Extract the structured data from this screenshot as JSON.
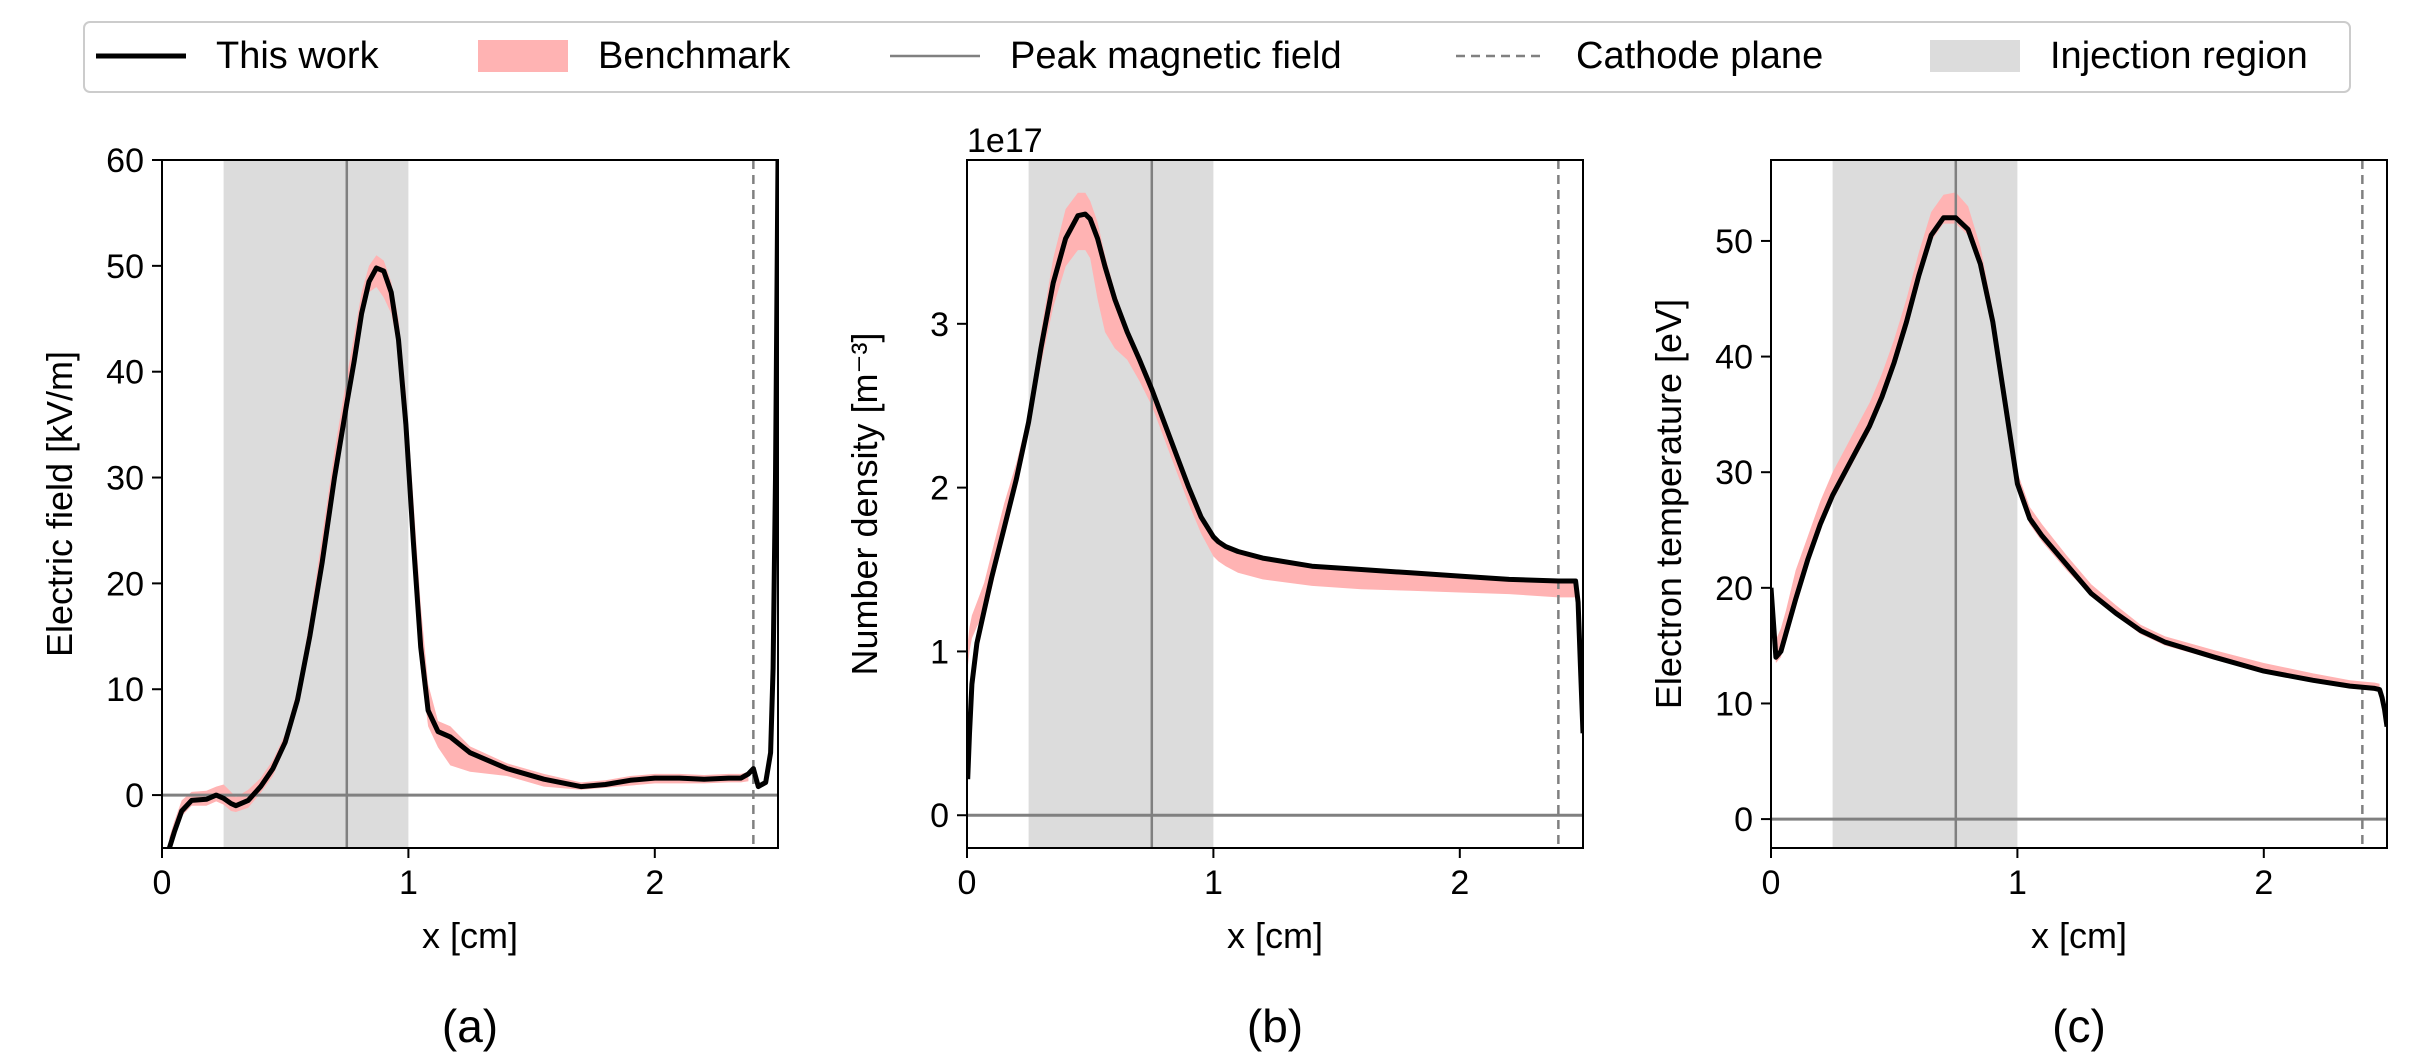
{
  "legend": {
    "placement": "top-center",
    "entries": [
      {
        "label": "This work",
        "kind": "line",
        "color": "#000000",
        "style": "solid"
      },
      {
        "label": "Benchmark",
        "kind": "band",
        "color": "#ffb3b3"
      },
      {
        "label": "Peak magnetic field",
        "kind": "line",
        "color": "#808080",
        "style": "solid"
      },
      {
        "label": "Cathode plane",
        "kind": "line",
        "color": "#808080",
        "style": "dashed"
      },
      {
        "label": "Injection region",
        "kind": "band",
        "color": "#dcdcdc"
      }
    ]
  },
  "annotations": {
    "peak_magnetic_field_x": 0.75,
    "cathode_plane_x": 2.4,
    "injection_region": [
      0.25,
      1.0
    ],
    "zero_line_color": "#808080"
  },
  "chart_data": [
    {
      "type": "line",
      "panel_label": "(a)",
      "xlabel": "x [cm]",
      "ylabel": "Electric field [kV/m]",
      "xlim": [
        0,
        2.5
      ],
      "ylim": [
        -5,
        60
      ],
      "xticks": [
        0,
        1,
        2
      ],
      "yticks": [
        0,
        10,
        20,
        30,
        40,
        50,
        60
      ],
      "offset_text": "",
      "series": [
        {
          "name": "This work",
          "color": "#000000",
          "x": [
            0.03,
            0.05,
            0.08,
            0.12,
            0.18,
            0.22,
            0.25,
            0.28,
            0.3,
            0.35,
            0.4,
            0.45,
            0.5,
            0.55,
            0.6,
            0.65,
            0.7,
            0.75,
            0.78,
            0.81,
            0.84,
            0.87,
            0.9,
            0.93,
            0.96,
            0.99,
            1.02,
            1.05,
            1.08,
            1.12,
            1.17,
            1.25,
            1.4,
            1.55,
            1.7,
            1.8,
            1.9,
            2.0,
            2.1,
            2.2,
            2.3,
            2.35,
            2.38,
            2.4,
            2.42,
            2.45,
            2.47,
            2.48,
            2.49,
            2.5
          ],
          "y": [
            -5,
            -3.5,
            -1.5,
            -0.5,
            -0.4,
            0,
            -0.3,
            -0.8,
            -1.0,
            -0.5,
            0.8,
            2.5,
            5.0,
            9.0,
            15.0,
            22.0,
            30.0,
            37.0,
            41.0,
            45.5,
            48.5,
            49.8,
            49.5,
            47.5,
            43.0,
            35.0,
            24.0,
            14.0,
            8.0,
            6.0,
            5.5,
            4.0,
            2.5,
            1.5,
            0.8,
            1.0,
            1.4,
            1.6,
            1.6,
            1.5,
            1.6,
            1.6,
            2.0,
            2.5,
            0.8,
            1.2,
            4.0,
            12.0,
            30.0,
            60.0
          ]
        },
        {
          "name": "Benchmark",
          "color": "#ffb3b3",
          "x": [
            0.03,
            0.05,
            0.08,
            0.12,
            0.18,
            0.22,
            0.25,
            0.28,
            0.3,
            0.35,
            0.4,
            0.45,
            0.5,
            0.55,
            0.6,
            0.65,
            0.7,
            0.75,
            0.78,
            0.81,
            0.84,
            0.87,
            0.9,
            0.93,
            0.96,
            0.99,
            1.02,
            1.05,
            1.08,
            1.12,
            1.17,
            1.25,
            1.4,
            1.55,
            1.7,
            1.8,
            1.9,
            2.0,
            2.1,
            2.2,
            2.3,
            2.35,
            2.38
          ],
          "lower": [
            -5,
            -4,
            -2.0,
            -1.0,
            -1.0,
            -0.6,
            -0.9,
            -1.5,
            -1.6,
            -1.2,
            0.2,
            1.8,
            4.5,
            8.5,
            15.0,
            23.0,
            31.0,
            38.0,
            42.0,
            45.5,
            47.5,
            48.0,
            47.0,
            45.5,
            42.0,
            34.0,
            22.0,
            12.0,
            6.5,
            4.5,
            2.8,
            2.2,
            1.8,
            0.8,
            0.5,
            0.7,
            0.9,
            1.1,
            1.1,
            1.1,
            1.2,
            1.2,
            1.3
          ],
          "upper": [
            -4,
            -2.5,
            -0.5,
            0.3,
            0.4,
            0.8,
            1.0,
            0.3,
            -0.2,
            0.5,
            1.6,
            3.3,
            5.8,
            10.0,
            16.5,
            24.5,
            32.5,
            39.5,
            43.5,
            47.5,
            50.0,
            51.0,
            50.5,
            48.5,
            45.0,
            38.0,
            28.0,
            18.0,
            10.5,
            7.0,
            6.5,
            4.6,
            3.0,
            2.0,
            1.2,
            1.4,
            1.8,
            2.0,
            2.0,
            1.9,
            2.0,
            2.0,
            2.2
          ]
        }
      ]
    },
    {
      "type": "line",
      "panel_label": "(b)",
      "xlabel": "x [cm]",
      "ylabel": "Number density [m⁻³]",
      "xlim": [
        0,
        2.5
      ],
      "ylim": [
        -2e+16,
        4e+17
      ],
      "xticks": [
        0,
        1,
        2
      ],
      "yticks": [
        0,
        1e+17,
        2e+17,
        3e+17
      ],
      "tick_divisor": 1e+17,
      "offset_text": "1e17",
      "series": [
        {
          "name": "This work",
          "color": "#000000",
          "x": [
            0.003,
            0.01,
            0.02,
            0.04,
            0.07,
            0.1,
            0.15,
            0.2,
            0.25,
            0.3,
            0.35,
            0.4,
            0.45,
            0.48,
            0.5,
            0.53,
            0.56,
            0.6,
            0.65,
            0.7,
            0.75,
            0.8,
            0.85,
            0.9,
            0.95,
            1.0,
            1.02,
            1.05,
            1.1,
            1.2,
            1.4,
            1.6,
            1.8,
            2.0,
            2.2,
            2.4,
            2.47,
            2.48,
            2.49,
            2.5
          ],
          "y": [
            2.2e+16,
            5e+16,
            8e+16,
            1.05e+17,
            1.25e+17,
            1.45e+17,
            1.75e+17,
            2.05e+17,
            2.4e+17,
            2.85e+17,
            3.25e+17,
            3.52e+17,
            3.66e+17,
            3.67e+17,
            3.64e+17,
            3.52e+17,
            3.35e+17,
            3.15e+17,
            2.95e+17,
            2.78e+17,
            2.6e+17,
            2.4e+17,
            2.2e+17,
            2e+17,
            1.82e+17,
            1.7e+17,
            1.67e+17,
            1.64e+17,
            1.61e+17,
            1.57e+17,
            1.52e+17,
            1.5e+17,
            1.48e+17,
            1.46e+17,
            1.44e+17,
            1.43e+17,
            1.43e+17,
            1.3e+17,
            9e+16,
            5e+16
          ]
        },
        {
          "name": "Benchmark",
          "color": "#ffb3b3",
          "x": [
            0.003,
            0.01,
            0.02,
            0.04,
            0.07,
            0.1,
            0.15,
            0.2,
            0.25,
            0.3,
            0.35,
            0.4,
            0.45,
            0.48,
            0.5,
            0.53,
            0.56,
            0.6,
            0.65,
            0.7,
            0.75,
            0.8,
            0.85,
            0.9,
            0.95,
            1.0,
            1.02,
            1.05,
            1.1,
            1.2,
            1.4,
            1.6,
            1.8,
            2.0,
            2.2,
            2.4,
            2.47
          ],
          "lower": [
            9e+16,
            1e+17,
            1.08e+17,
            1.15e+17,
            1.25e+17,
            1.38e+17,
            1.7e+17,
            2e+17,
            2.38e+17,
            2.75e+17,
            3.1e+17,
            3.35e+17,
            3.45e+17,
            3.45e+17,
            3.4e+17,
            3.15e+17,
            2.95e+17,
            2.85e+17,
            2.78e+17,
            2.65e+17,
            2.5e+17,
            2.3e+17,
            2.1e+17,
            1.9e+17,
            1.72e+17,
            1.58e+17,
            1.55e+17,
            1.52e+17,
            1.48e+17,
            1.44e+17,
            1.4e+17,
            1.38e+17,
            1.37e+17,
            1.36e+17,
            1.35e+17,
            1.33e+17,
            1.33e+17
          ],
          "upper": [
            1.05e+17,
            1.15e+17,
            1.22e+17,
            1.3e+17,
            1.42e+17,
            1.6e+17,
            1.9e+17,
            2.15e+17,
            2.45e+17,
            2.95e+17,
            3.4e+17,
            3.7e+17,
            3.8e+17,
            3.8e+17,
            3.75e+17,
            3.62e+17,
            3.42e+17,
            3.2e+17,
            2.98e+17,
            2.8e+17,
            2.62e+17,
            2.42e+17,
            2.22e+17,
            2.02e+17,
            1.83e+17,
            1.7e+17,
            1.66e+17,
            1.63e+17,
            1.6e+17,
            1.56e+17,
            1.52e+17,
            1.5e+17,
            1.49e+17,
            1.47e+17,
            1.45e+17,
            1.44e+17,
            1.44e+17
          ]
        }
      ]
    },
    {
      "type": "line",
      "panel_label": "(c)",
      "xlabel": "x [cm]",
      "ylabel": "Electron temperature [eV]",
      "xlim": [
        0,
        2.5
      ],
      "ylim": [
        -2.5,
        57
      ],
      "xticks": [
        0,
        1,
        2
      ],
      "yticks": [
        0,
        10,
        20,
        30,
        40,
        50
      ],
      "offset_text": "",
      "series": [
        {
          "name": "This work",
          "color": "#000000",
          "x": [
            0.0,
            0.02,
            0.04,
            0.06,
            0.1,
            0.15,
            0.2,
            0.25,
            0.3,
            0.35,
            0.4,
            0.45,
            0.5,
            0.55,
            0.6,
            0.65,
            0.7,
            0.75,
            0.8,
            0.85,
            0.9,
            0.95,
            1.0,
            1.05,
            1.1,
            1.2,
            1.3,
            1.4,
            1.5,
            1.6,
            1.8,
            2.0,
            2.2,
            2.35,
            2.4,
            2.45,
            2.47,
            2.48,
            2.49,
            2.5
          ],
          "y": [
            20.0,
            14.0,
            14.5,
            16.0,
            19.0,
            22.5,
            25.5,
            28.0,
            30.0,
            32.0,
            34.0,
            36.5,
            39.5,
            43.0,
            47.0,
            50.5,
            52.0,
            52.0,
            51.0,
            48.0,
            43.0,
            36.0,
            29.0,
            26.0,
            24.5,
            22.0,
            19.5,
            17.8,
            16.3,
            15.3,
            14.0,
            12.8,
            12.0,
            11.5,
            11.4,
            11.3,
            11.2,
            10.5,
            9.5,
            8.0
          ]
        },
        {
          "name": "Benchmark",
          "color": "#ffb3b3",
          "x": [
            0.0,
            0.02,
            0.04,
            0.06,
            0.1,
            0.15,
            0.2,
            0.25,
            0.3,
            0.35,
            0.4,
            0.45,
            0.5,
            0.55,
            0.6,
            0.65,
            0.7,
            0.75,
            0.8,
            0.85,
            0.9,
            0.95,
            1.0,
            1.05,
            1.1,
            1.2,
            1.3,
            1.4,
            1.5,
            1.6,
            1.8,
            2.0,
            2.2,
            2.35,
            2.4,
            2.45,
            2.47
          ],
          "lower": [
            19.0,
            13.5,
            14.0,
            15.5,
            19.0,
            22.0,
            25.0,
            27.5,
            29.5,
            31.5,
            33.5,
            36.0,
            39.5,
            43.0,
            47.0,
            50.0,
            51.5,
            51.5,
            50.5,
            47.5,
            42.0,
            35.0,
            28.5,
            25.5,
            24.0,
            21.5,
            19.3,
            17.6,
            16.0,
            15.0,
            13.8,
            12.6,
            11.8,
            11.3,
            11.2,
            11.1,
            11.0
          ],
          "upper": [
            21.0,
            15.5,
            16.5,
            18.0,
            21.5,
            24.5,
            27.5,
            30.0,
            32.0,
            34.0,
            36.0,
            38.5,
            41.5,
            45.0,
            49.0,
            52.5,
            54.0,
            54.2,
            53.0,
            49.5,
            44.0,
            37.0,
            30.0,
            27.0,
            25.5,
            22.8,
            20.3,
            18.5,
            16.8,
            15.8,
            14.6,
            13.5,
            12.6,
            12.0,
            11.9,
            11.8,
            11.7
          ]
        }
      ]
    }
  ]
}
